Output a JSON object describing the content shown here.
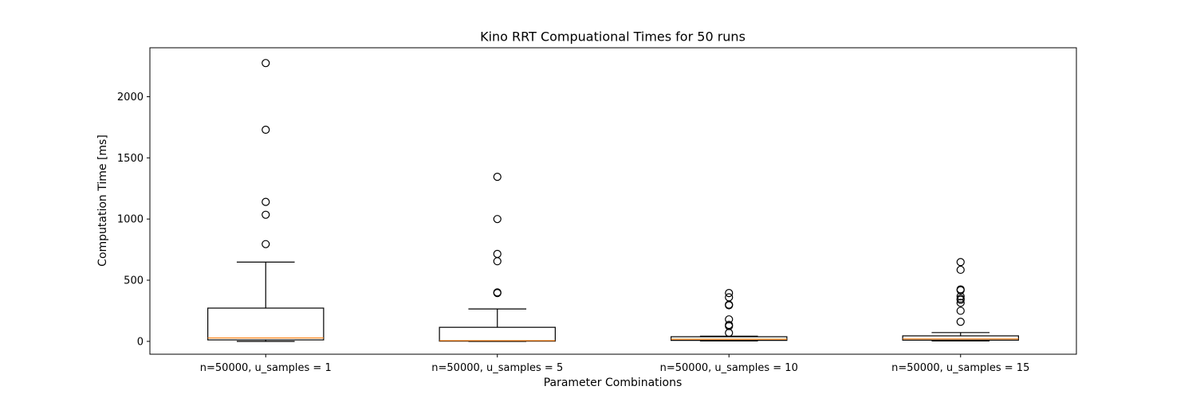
{
  "chart_data": {
    "type": "boxplot",
    "title": "Kino RRT Compuational Times for 50 runs",
    "xlabel": "Parameter Combinations",
    "ylabel": "Computation Time [ms]",
    "ylim": [
      -105,
      2400
    ],
    "yticks": [
      0,
      500,
      1000,
      1500,
      2000
    ],
    "grid": false,
    "categories": [
      "n=50000, u_samples = 1",
      "n=50000, u_samples = 5",
      "n=50000, u_samples = 10",
      "n=50000, u_samples = 15"
    ],
    "boxes": [
      {
        "whisker_low": 0,
        "q1": 12,
        "median": 28,
        "q3": 272,
        "whisker_high": 648,
        "outliers": [
          2275,
          1730,
          1140,
          1035,
          795
        ]
      },
      {
        "whisker_low": 0,
        "q1": 2,
        "median": 6,
        "q3": 115,
        "whisker_high": 265,
        "outliers": [
          1345,
          1000,
          715,
          655,
          400,
          395
        ]
      },
      {
        "whisker_low": 4,
        "q1": 8,
        "median": 18,
        "q3": 38,
        "whisker_high": 42,
        "outliers": [
          395,
          360,
          300,
          295,
          180,
          135,
          125,
          70
        ]
      },
      {
        "whisker_low": 4,
        "q1": 10,
        "median": 20,
        "q3": 45,
        "whisker_high": 72,
        "outliers": [
          648,
          585,
          425,
          418,
          368,
          350,
          340,
          315,
          250,
          160
        ]
      }
    ],
    "colors": {
      "box": "#000000",
      "median": "#ff7f0e",
      "outlier_edge": "#000000"
    }
  }
}
